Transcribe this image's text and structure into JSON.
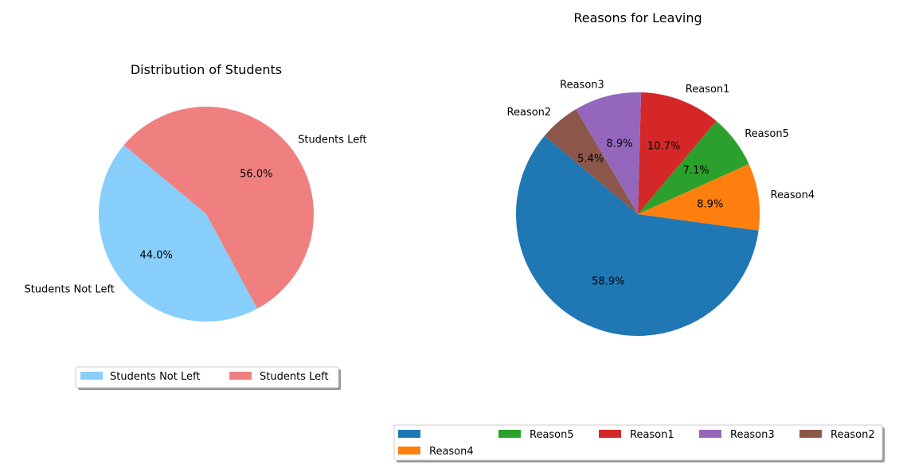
{
  "chart_data": [
    {
      "type": "pie",
      "title": "Distribution of Students",
      "slices": [
        {
          "label": "Students Not Left",
          "value": 44.0,
          "pct_label": "44.0%",
          "color": "#87cefa"
        },
        {
          "label": "Students Left",
          "value": 56.0,
          "pct_label": "56.0%",
          "color": "#f08080"
        }
      ],
      "start_angle_deg": 140,
      "direction": "counterclockwise",
      "legend": {
        "placement": "below",
        "columns": 2,
        "entries": [
          "Students Not Left",
          "Students Left"
        ]
      }
    },
    {
      "type": "pie",
      "title": "Reasons for Leaving",
      "slices": [
        {
          "label": "",
          "value": 58.9,
          "pct_label": "58.9%",
          "color": "#1f77b4"
        },
        {
          "label": "Reason4",
          "value": 8.9,
          "pct_label": "8.9%",
          "color": "#ff7f0e"
        },
        {
          "label": "Reason5",
          "value": 7.1,
          "pct_label": "7.1%",
          "color": "#2ca02c"
        },
        {
          "label": "Reason1",
          "value": 10.7,
          "pct_label": "10.7%",
          "color": "#d62728"
        },
        {
          "label": "Reason3",
          "value": 8.9,
          "pct_label": "8.9%",
          "color": "#9467bd"
        },
        {
          "label": "Reason2",
          "value": 5.4,
          "pct_label": "5.4%",
          "color": "#8c564b"
        }
      ],
      "start_angle_deg": 140,
      "direction": "counterclockwise",
      "legend": {
        "placement": "below",
        "columns": 5,
        "entries": [
          "",
          "Reason4",
          "Reason5",
          "Reason1",
          "Reason3",
          "Reason2"
        ]
      }
    }
  ]
}
